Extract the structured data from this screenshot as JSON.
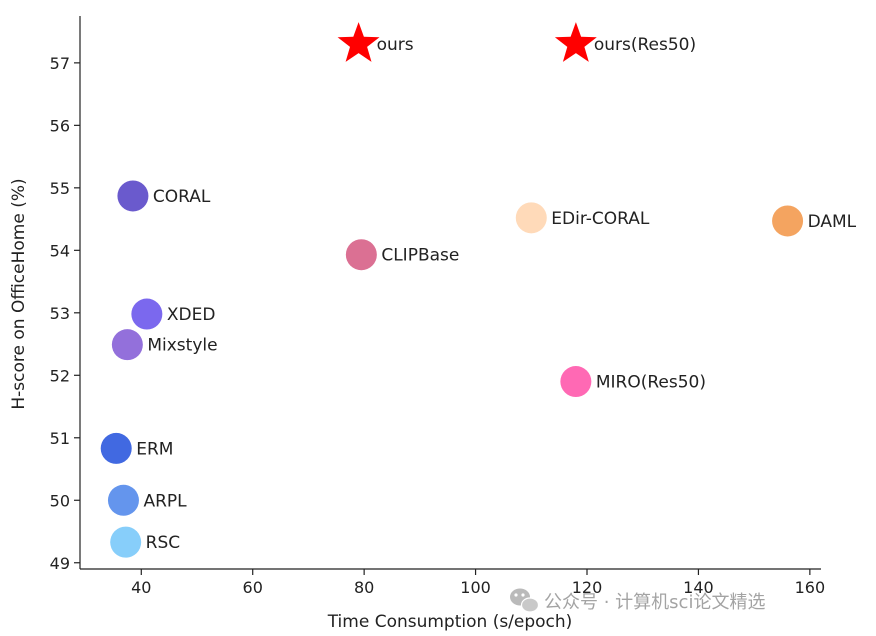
{
  "chart_data": {
    "type": "scatter",
    "xlabel": "Time Consumption (s/epoch)",
    "ylabel": "H-score on OfficeHome (%)",
    "xlim": [
      29,
      162
    ],
    "ylim": [
      48.9,
      57.75
    ],
    "xticks": [
      40,
      60,
      80,
      100,
      120,
      140,
      160
    ],
    "yticks": [
      49,
      50,
      51,
      52,
      53,
      54,
      55,
      56,
      57
    ],
    "grid": false,
    "points": [
      {
        "label": "ours",
        "x": 79,
        "y": 57.3,
        "color": "#ff0000",
        "marker": "star"
      },
      {
        "label": "ours(Res50)",
        "x": 118,
        "y": 57.3,
        "color": "#ff0000",
        "marker": "star"
      },
      {
        "label": "CORAL",
        "x": 38.5,
        "y": 54.87,
        "color": "#6a5acd",
        "marker": "circle"
      },
      {
        "label": "EDir-CORAL",
        "x": 110,
        "y": 54.52,
        "color": "#ffdab9",
        "marker": "circle"
      },
      {
        "label": "DAML",
        "x": 156,
        "y": 54.47,
        "color": "#f4a460",
        "marker": "circle"
      },
      {
        "label": "CLIPBase",
        "x": 79.5,
        "y": 53.93,
        "color": "#db7093",
        "marker": "circle"
      },
      {
        "label": "XDED",
        "x": 41,
        "y": 52.98,
        "color": "#7b68ee",
        "marker": "circle"
      },
      {
        "label": "Mixstyle",
        "x": 37.5,
        "y": 52.49,
        "color": "#9370db",
        "marker": "circle"
      },
      {
        "label": "MIRO(Res50)",
        "x": 118,
        "y": 51.9,
        "color": "#ff69b4",
        "marker": "circle"
      },
      {
        "label": "ERM",
        "x": 35.5,
        "y": 50.83,
        "color": "#4169e1",
        "marker": "circle"
      },
      {
        "label": "ARPL",
        "x": 36.8,
        "y": 50.0,
        "color": "#6495ed",
        "marker": "circle"
      },
      {
        "label": "RSC",
        "x": 37.2,
        "y": 49.33,
        "color": "#87cefa",
        "marker": "circle"
      }
    ]
  },
  "watermark": {
    "icon": "wechat-icon",
    "text": "公众号 · 计算机sci论文精选"
  }
}
